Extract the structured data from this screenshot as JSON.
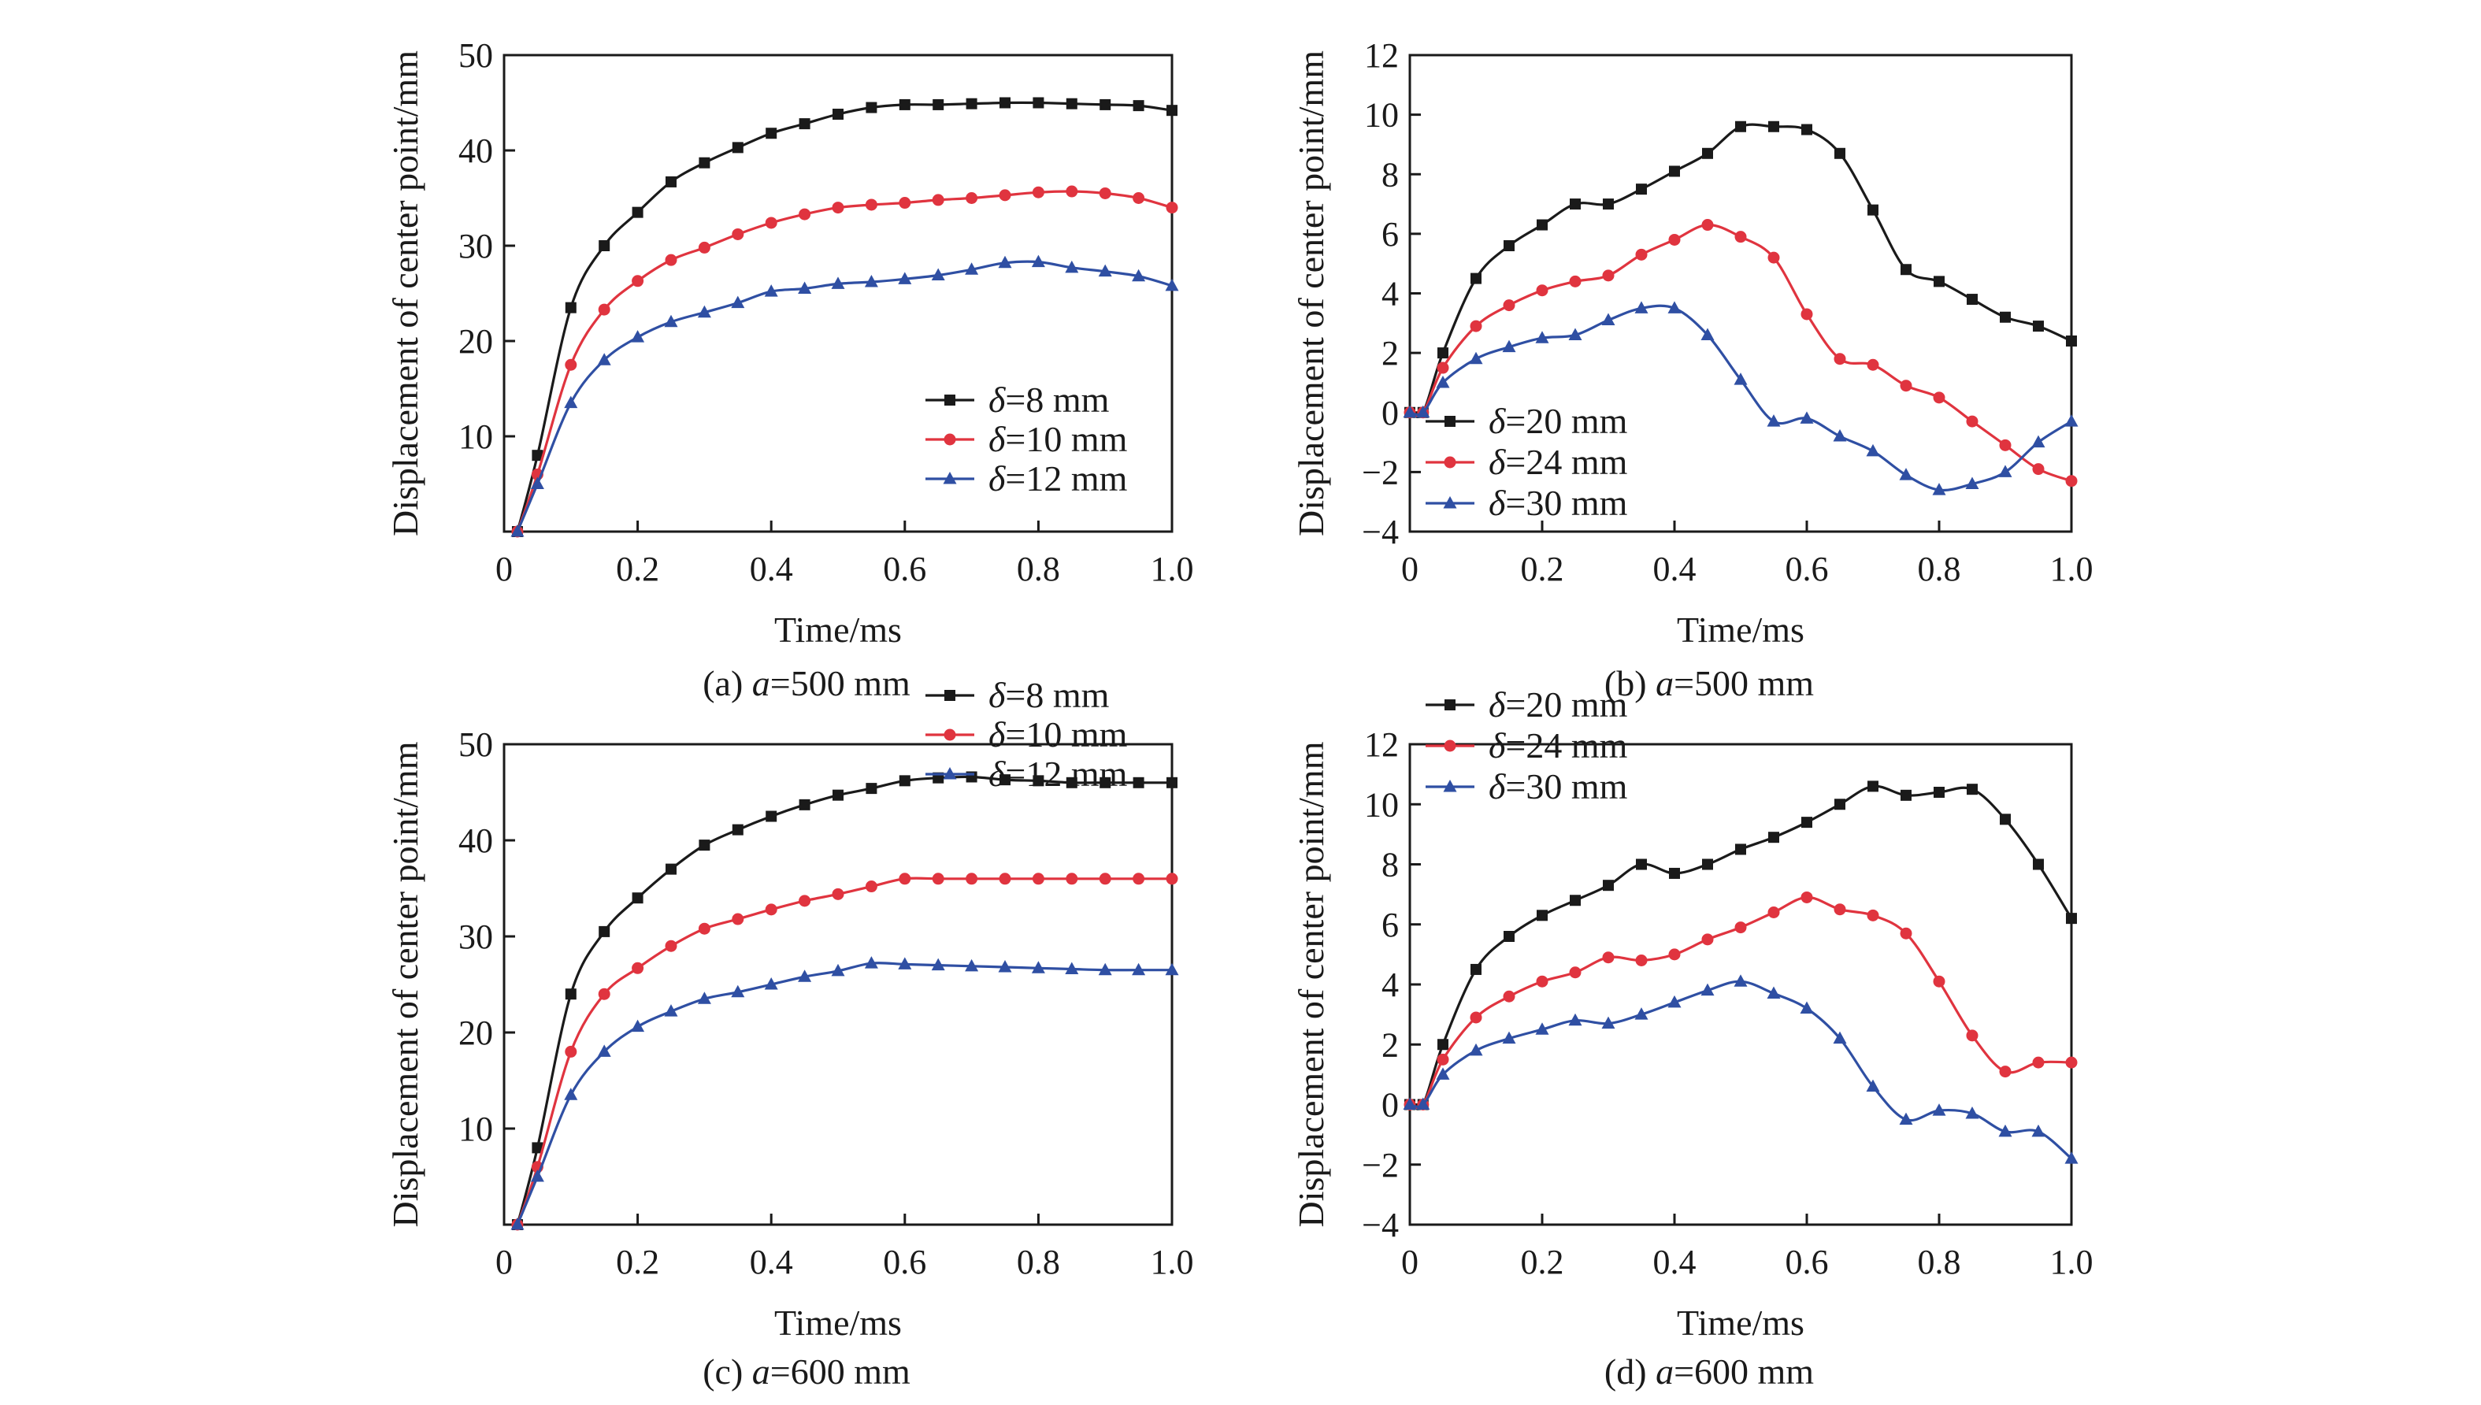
{
  "colors": {
    "black": "#1a1a1a",
    "red": "#e0343f",
    "blue": "#2f4fa3"
  },
  "chart_data": [
    {
      "type": "line",
      "caption": {
        "prefix": "(a) ",
        "var": "a",
        "rest": "=500 mm"
      },
      "xlabel": "Time/ms",
      "ylabel": "Displacement of center point/mm",
      "xlim": [
        0,
        1.0
      ],
      "ylim": [
        0,
        50
      ],
      "xticks": [
        0,
        0.2,
        0.4,
        0.6,
        0.8,
        1.0
      ],
      "xtick_labels": [
        "0",
        "0.2",
        "0.4",
        "0.6",
        "0.8",
        "1.0"
      ],
      "yticks": [
        10,
        20,
        30,
        40,
        50
      ],
      "ytick_labels": [
        "10",
        "20",
        "30",
        "40",
        "50"
      ],
      "legend_position": "lower-right",
      "x": [
        0.02,
        0.05,
        0.1,
        0.15,
        0.2,
        0.25,
        0.3,
        0.35,
        0.4,
        0.45,
        0.5,
        0.55,
        0.6,
        0.65,
        0.7,
        0.75,
        0.8,
        0.85,
        0.9,
        0.95,
        1.0
      ],
      "series": [
        {
          "name": "=8 mm",
          "color": "black",
          "marker": "square",
          "values": [
            0,
            8,
            23.5,
            30,
            33.5,
            36.7,
            38.7,
            40.3,
            41.8,
            42.8,
            43.8,
            44.5,
            44.8,
            44.8,
            44.9,
            45,
            45,
            44.9,
            44.8,
            44.7,
            44.2
          ]
        },
        {
          "name": "=10 mm",
          "color": "red",
          "marker": "circle",
          "values": [
            0,
            6,
            17.5,
            23.3,
            26.3,
            28.5,
            29.8,
            31.2,
            32.4,
            33.3,
            34,
            34.3,
            34.5,
            34.8,
            35,
            35.3,
            35.6,
            35.7,
            35.5,
            35,
            34
          ]
        },
        {
          "name": "=12 mm",
          "color": "blue",
          "marker": "triangle",
          "values": [
            0,
            5,
            13.5,
            18,
            20.4,
            22,
            23,
            24,
            25.2,
            25.5,
            26,
            26.2,
            26.5,
            26.9,
            27.5,
            28.2,
            28.3,
            27.7,
            27.3,
            26.8,
            25.8
          ]
        }
      ]
    },
    {
      "type": "line",
      "caption": {
        "prefix": "(b) ",
        "var": "a",
        "rest": "=500 mm"
      },
      "xlabel": "Time/ms",
      "ylabel": "Displacement of center point/mm",
      "xlim": [
        0,
        1.0
      ],
      "ylim": [
        -4,
        12
      ],
      "xticks": [
        0,
        0.2,
        0.4,
        0.6,
        0.8,
        1.0
      ],
      "xtick_labels": [
        "0",
        "0.2",
        "0.4",
        "0.6",
        "0.8",
        "1.0"
      ],
      "yticks": [
        -4,
        -2,
        0,
        2,
        4,
        6,
        8,
        10,
        12
      ],
      "ytick_labels": [
        "−4",
        "−2",
        "0",
        "2",
        "4",
        "6",
        "8",
        "10",
        "12"
      ],
      "legend_position": "lower-left",
      "x": [
        0,
        0.02,
        0.05,
        0.1,
        0.15,
        0.2,
        0.25,
        0.3,
        0.35,
        0.4,
        0.45,
        0.5,
        0.55,
        0.6,
        0.65,
        0.7,
        0.75,
        0.8,
        0.85,
        0.9,
        0.95,
        1.0
      ],
      "series": [
        {
          "name": "=20 mm",
          "color": "black",
          "marker": "square",
          "values": [
            0,
            0,
            2,
            4.5,
            5.6,
            6.3,
            7,
            7,
            7.5,
            8.1,
            8.7,
            9.6,
            9.6,
            9.5,
            8.7,
            6.8,
            4.8,
            4.4,
            3.8,
            3.2,
            2.9,
            2.4
          ]
        },
        {
          "name": "=24 mm",
          "color": "red",
          "marker": "circle",
          "values": [
            0,
            0,
            1.5,
            2.9,
            3.6,
            4.1,
            4.4,
            4.6,
            5.3,
            5.8,
            6.3,
            5.9,
            5.2,
            3.3,
            1.8,
            1.6,
            0.9,
            0.5,
            -0.3,
            -1.1,
            -1.9,
            -2.3
          ]
        },
        {
          "name": "=30 mm",
          "color": "blue",
          "marker": "triangle",
          "values": [
            0,
            0,
            1,
            1.8,
            2.2,
            2.5,
            2.6,
            3.1,
            3.5,
            3.5,
            2.6,
            1.1,
            -0.3,
            -0.2,
            -0.8,
            -1.3,
            -2.1,
            -2.6,
            -2.4,
            -2,
            -1,
            -0.3
          ]
        }
      ]
    },
    {
      "type": "line",
      "caption": {
        "prefix": "(c) ",
        "var": "a",
        "rest": "=600 mm"
      },
      "xlabel": "Time/ms",
      "ylabel": "Displacement of center point/mm",
      "xlim": [
        0,
        1.0
      ],
      "ylim": [
        0,
        50
      ],
      "xticks": [
        0,
        0.2,
        0.4,
        0.6,
        0.8,
        1.0
      ],
      "xtick_labels": [
        "0",
        "0.2",
        "0.4",
        "0.6",
        "0.8",
        "1.0"
      ],
      "yticks": [
        10,
        20,
        30,
        40,
        50
      ],
      "ytick_labels": [
        "10",
        "20",
        "30",
        "40",
        "50"
      ],
      "legend_position": "lower-right",
      "x": [
        0.02,
        0.05,
        0.1,
        0.15,
        0.2,
        0.25,
        0.3,
        0.35,
        0.4,
        0.45,
        0.5,
        0.55,
        0.6,
        0.65,
        0.7,
        0.75,
        0.8,
        0.85,
        0.9,
        0.95,
        1.0
      ],
      "series": [
        {
          "name": "=8 mm",
          "color": "black",
          "marker": "square",
          "values": [
            0,
            8,
            24,
            30.5,
            34,
            37,
            39.5,
            41.1,
            42.5,
            43.7,
            44.7,
            45.4,
            46.2,
            46.5,
            46.6,
            46.3,
            46.2,
            46,
            46,
            46,
            46
          ]
        },
        {
          "name": "=10 mm",
          "color": "red",
          "marker": "circle",
          "values": [
            0,
            6,
            18,
            24,
            26.7,
            29,
            30.8,
            31.8,
            32.8,
            33.7,
            34.4,
            35.2,
            36,
            36,
            36,
            36,
            36,
            36,
            36,
            36,
            36
          ]
        },
        {
          "name": "=12 mm",
          "color": "blue",
          "marker": "triangle",
          "values": [
            0,
            5,
            13.5,
            18,
            20.6,
            22.2,
            23.5,
            24.2,
            25,
            25.8,
            26.4,
            27.2,
            27.1,
            27,
            26.9,
            26.8,
            26.7,
            26.6,
            26.5,
            26.5,
            26.5
          ]
        }
      ]
    },
    {
      "type": "line",
      "caption": {
        "prefix": "(d) ",
        "var": "a",
        "rest": "=600 mm"
      },
      "xlabel": "Time/ms",
      "ylabel": "Displacement of center point/mm",
      "xlim": [
        0,
        1.0
      ],
      "ylim": [
        -4,
        12
      ],
      "xticks": [
        0,
        0.2,
        0.4,
        0.6,
        0.8,
        1.0
      ],
      "xtick_labels": [
        "0",
        "0.2",
        "0.4",
        "0.6",
        "0.8",
        "1.0"
      ],
      "yticks": [
        -4,
        -2,
        0,
        2,
        4,
        6,
        8,
        10,
        12
      ],
      "ytick_labels": [
        "−4",
        "−2",
        "0",
        "2",
        "4",
        "6",
        "8",
        "10",
        "12"
      ],
      "legend_position": "lower-left",
      "x": [
        0,
        0.02,
        0.05,
        0.1,
        0.15,
        0.2,
        0.25,
        0.3,
        0.35,
        0.4,
        0.45,
        0.5,
        0.55,
        0.6,
        0.65,
        0.7,
        0.75,
        0.8,
        0.85,
        0.9,
        0.95,
        1.0
      ],
      "series": [
        {
          "name": "=20 mm",
          "color": "black",
          "marker": "square",
          "values": [
            0,
            0,
            2,
            4.5,
            5.6,
            6.3,
            6.8,
            7.3,
            8,
            7.7,
            8,
            8.5,
            8.9,
            9.4,
            10,
            10.6,
            10.3,
            10.4,
            10.5,
            9.5,
            8,
            6.2
          ]
        },
        {
          "name": "=24 mm",
          "color": "red",
          "marker": "circle",
          "values": [
            0,
            0,
            1.5,
            2.9,
            3.6,
            4.1,
            4.4,
            4.9,
            4.8,
            5,
            5.5,
            5.9,
            6.4,
            6.9,
            6.5,
            6.3,
            5.7,
            4.1,
            2.3,
            1.1,
            1.4,
            1.4
          ]
        },
        {
          "name": "=30 mm",
          "color": "blue",
          "marker": "triangle",
          "values": [
            0,
            0,
            1,
            1.8,
            2.2,
            2.5,
            2.8,
            2.7,
            3,
            3.4,
            3.8,
            4.1,
            3.7,
            3.2,
            2.2,
            0.6,
            -0.5,
            -0.2,
            -0.3,
            -0.9,
            -0.9,
            -1.8
          ]
        }
      ]
    }
  ]
}
